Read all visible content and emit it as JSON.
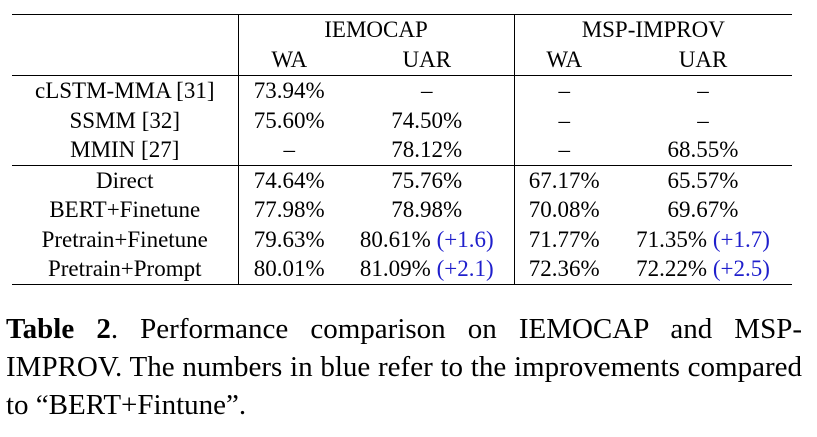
{
  "table": {
    "datasets": [
      "IEMOCAP",
      "MSP-IMPROV"
    ],
    "metrics": [
      "WA",
      "UAR",
      "WA",
      "UAR"
    ],
    "rows": [
      {
        "method": "cLSTM-MMA [31]",
        "iemocap_wa": "73.94%",
        "iemocap_uar": "–",
        "iemocap_uar_gain": "",
        "msp_wa": "–",
        "msp_uar": "–",
        "msp_uar_gain": ""
      },
      {
        "method": "SSMM [32]",
        "iemocap_wa": "75.60%",
        "iemocap_uar": "74.50%",
        "iemocap_uar_gain": "",
        "msp_wa": "–",
        "msp_uar": "–",
        "msp_uar_gain": ""
      },
      {
        "method": "MMIN [27]",
        "iemocap_wa": "–",
        "iemocap_uar": "78.12%",
        "iemocap_uar_gain": "",
        "msp_wa": "–",
        "msp_uar": "68.55%",
        "msp_uar_gain": ""
      },
      {
        "method": "Direct",
        "iemocap_wa": "74.64%",
        "iemocap_uar": "75.76%",
        "iemocap_uar_gain": "",
        "msp_wa": "67.17%",
        "msp_uar": "65.57%",
        "msp_uar_gain": ""
      },
      {
        "method": "BERT+Finetune",
        "iemocap_wa": "77.98%",
        "iemocap_uar": "78.98%",
        "iemocap_uar_gain": "",
        "msp_wa": "70.08%",
        "msp_uar": "69.67%",
        "msp_uar_gain": ""
      },
      {
        "method": "Pretrain+Finetune",
        "iemocap_wa": "79.63%",
        "iemocap_uar": "80.61%",
        "iemocap_uar_gain": "(+1.6)",
        "msp_wa": "71.77%",
        "msp_uar": "71.35%",
        "msp_uar_gain": "(+1.7)"
      },
      {
        "method": "Pretrain+Prompt",
        "iemocap_wa": "80.01%",
        "iemocap_uar": "81.09%",
        "iemocap_uar_gain": "(+2.1)",
        "msp_wa": "72.36%",
        "msp_uar": "72.22%",
        "msp_uar_gain": "(+2.5)"
      }
    ]
  },
  "caption": {
    "label": "Table 2",
    "text": ". Performance comparison on IEMOCAP and MSP-IMPROV. The numbers in blue refer to the improvements compared to “BERT+Fintune”."
  },
  "colors": {
    "gain": "#1f1fcc"
  }
}
